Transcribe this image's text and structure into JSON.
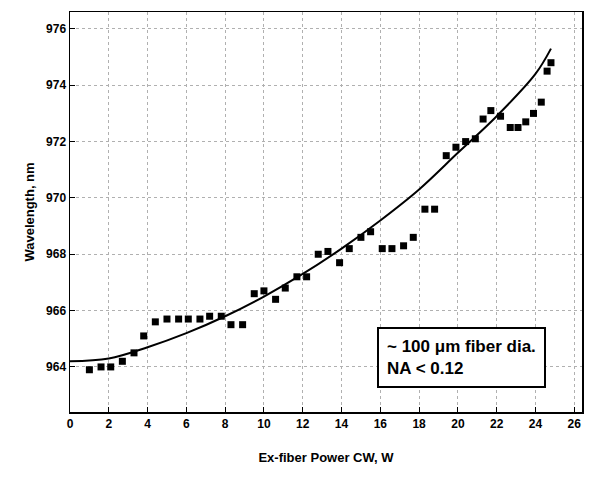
{
  "chart_data": {
    "type": "scatter",
    "x_label": "Ex-fiber Power CW, W",
    "y_label": "Wavelength, nm",
    "xlim": [
      0,
      26.4
    ],
    "ylim": [
      962.4,
      976.6
    ],
    "xticks": [
      0,
      2,
      4,
      6,
      8,
      10,
      12,
      14,
      16,
      18,
      20,
      22,
      24,
      26
    ],
    "yticks": [
      964,
      966,
      968,
      970,
      972,
      974,
      976
    ],
    "grid": true,
    "annotations": [
      "~ 100 μm fiber dia.",
      "NA < 0.12"
    ],
    "series": [
      {
        "type": "scatter",
        "marker": "square",
        "color": "#000000",
        "x": [
          1.0,
          1.6,
          2.1,
          2.7,
          3.3,
          3.8,
          4.4,
          5.0,
          5.6,
          6.1,
          6.7,
          7.2,
          7.8,
          8.3,
          8.9,
          9.5,
          10.0,
          10.6,
          11.1,
          11.7,
          12.2,
          12.8,
          13.3,
          13.9,
          14.4,
          15.0,
          15.5,
          16.1,
          16.6,
          17.2,
          17.7,
          18.3,
          18.8,
          19.4,
          19.9,
          20.4,
          20.9,
          21.3,
          21.7,
          22.2,
          22.7,
          23.1,
          23.5,
          23.9,
          24.3,
          24.6,
          24.8
        ],
        "values": [
          963.9,
          964.0,
          964.0,
          964.2,
          964.5,
          965.1,
          965.6,
          965.7,
          965.7,
          965.7,
          965.7,
          965.8,
          965.8,
          965.5,
          965.5,
          966.6,
          966.7,
          966.4,
          966.8,
          967.2,
          967.2,
          968.0,
          968.1,
          967.7,
          968.2,
          968.6,
          968.8,
          968.2,
          968.2,
          968.3,
          968.6,
          969.6,
          969.6,
          971.5,
          971.8,
          972.0,
          972.1,
          972.8,
          973.1,
          972.9,
          972.5,
          972.5,
          972.7,
          973.0,
          973.4,
          974.5,
          974.8
        ]
      },
      {
        "type": "line",
        "line_style": "solid",
        "color": "#000000",
        "x": [
          0,
          2,
          4,
          6,
          8,
          10,
          12,
          14,
          16,
          18,
          20,
          22,
          24,
          24.8
        ],
        "values": [
          964.2,
          964.3,
          964.7,
          965.2,
          965.8,
          966.5,
          967.3,
          968.2,
          969.2,
          970.3,
          971.6,
          972.9,
          974.4,
          975.3
        ]
      }
    ]
  }
}
